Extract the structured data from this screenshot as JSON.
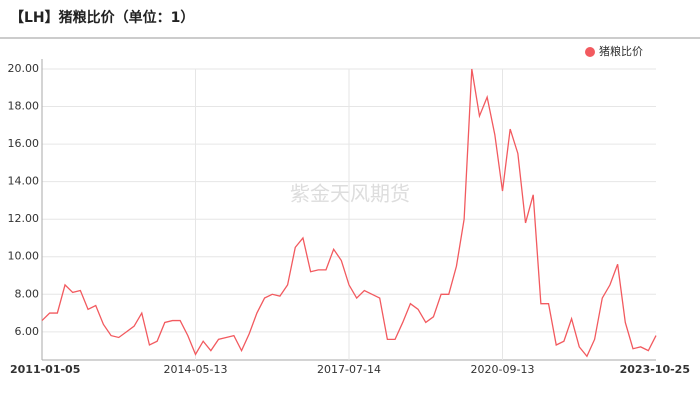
{
  "chart_data": {
    "type": "line",
    "title": "【LH】猪粮比价（单位：1）",
    "watermark": "紫金天风期货",
    "categories": [
      "2011-01-05",
      null,
      null,
      null,
      null,
      null,
      null,
      null,
      null,
      null,
      null,
      null,
      null,
      null,
      null,
      null,
      null,
      null,
      null,
      null,
      "2014-05-13",
      null,
      null,
      null,
      null,
      null,
      null,
      null,
      null,
      null,
      null,
      null,
      null,
      null,
      null,
      null,
      null,
      null,
      null,
      null,
      "2017-07-14",
      null,
      null,
      null,
      null,
      null,
      null,
      null,
      null,
      null,
      null,
      null,
      null,
      null,
      null,
      null,
      null,
      null,
      null,
      null,
      "2020-09-13",
      null,
      null,
      null,
      null,
      null,
      null,
      null,
      null,
      null,
      null,
      null,
      null,
      null,
      null,
      null,
      null,
      null,
      null,
      null,
      "2023-10-25"
    ],
    "series": [
      {
        "name": "猪粮比价",
        "color": "#f25a5f",
        "values": [
          6.6,
          7.0,
          7.0,
          8.5,
          8.1,
          8.2,
          7.2,
          7.4,
          6.4,
          5.8,
          5.7,
          6.0,
          6.3,
          7.0,
          5.3,
          5.5,
          6.5,
          6.6,
          6.6,
          5.8,
          4.8,
          5.5,
          5.0,
          5.6,
          5.7,
          5.8,
          5.0,
          5.9,
          7.0,
          7.8,
          8.0,
          7.9,
          8.5,
          10.5,
          11.0,
          9.2,
          9.3,
          9.3,
          10.4,
          9.8,
          8.5,
          7.8,
          8.2,
          8.0,
          7.8,
          5.6,
          5.6,
          6.5,
          7.5,
          7.2,
          6.5,
          6.8,
          8.0,
          8.0,
          9.5,
          12.0,
          20.0,
          17.5,
          18.5,
          16.5,
          13.5,
          16.8,
          15.5,
          11.8,
          13.3,
          7.5,
          7.5,
          5.3,
          5.5,
          6.7,
          5.2,
          4.7,
          5.6,
          7.8,
          8.5,
          9.6,
          6.5,
          5.1,
          5.2,
          5.0,
          5.8
        ]
      }
    ],
    "ylim": [
      4.5,
      20
    ],
    "yticks": [
      {
        "value": 6,
        "label": "6.00"
      },
      {
        "value": 8,
        "label": "8.00"
      },
      {
        "value": 10,
        "label": "10.00"
      },
      {
        "value": 12,
        "label": "12.00"
      },
      {
        "value": 14,
        "label": "14.00"
      },
      {
        "value": 16,
        "label": "16.00"
      },
      {
        "value": 18,
        "label": "18.00"
      },
      {
        "value": 20,
        "label": "20.00"
      }
    ],
    "grid": true,
    "legend": "top-right"
  }
}
